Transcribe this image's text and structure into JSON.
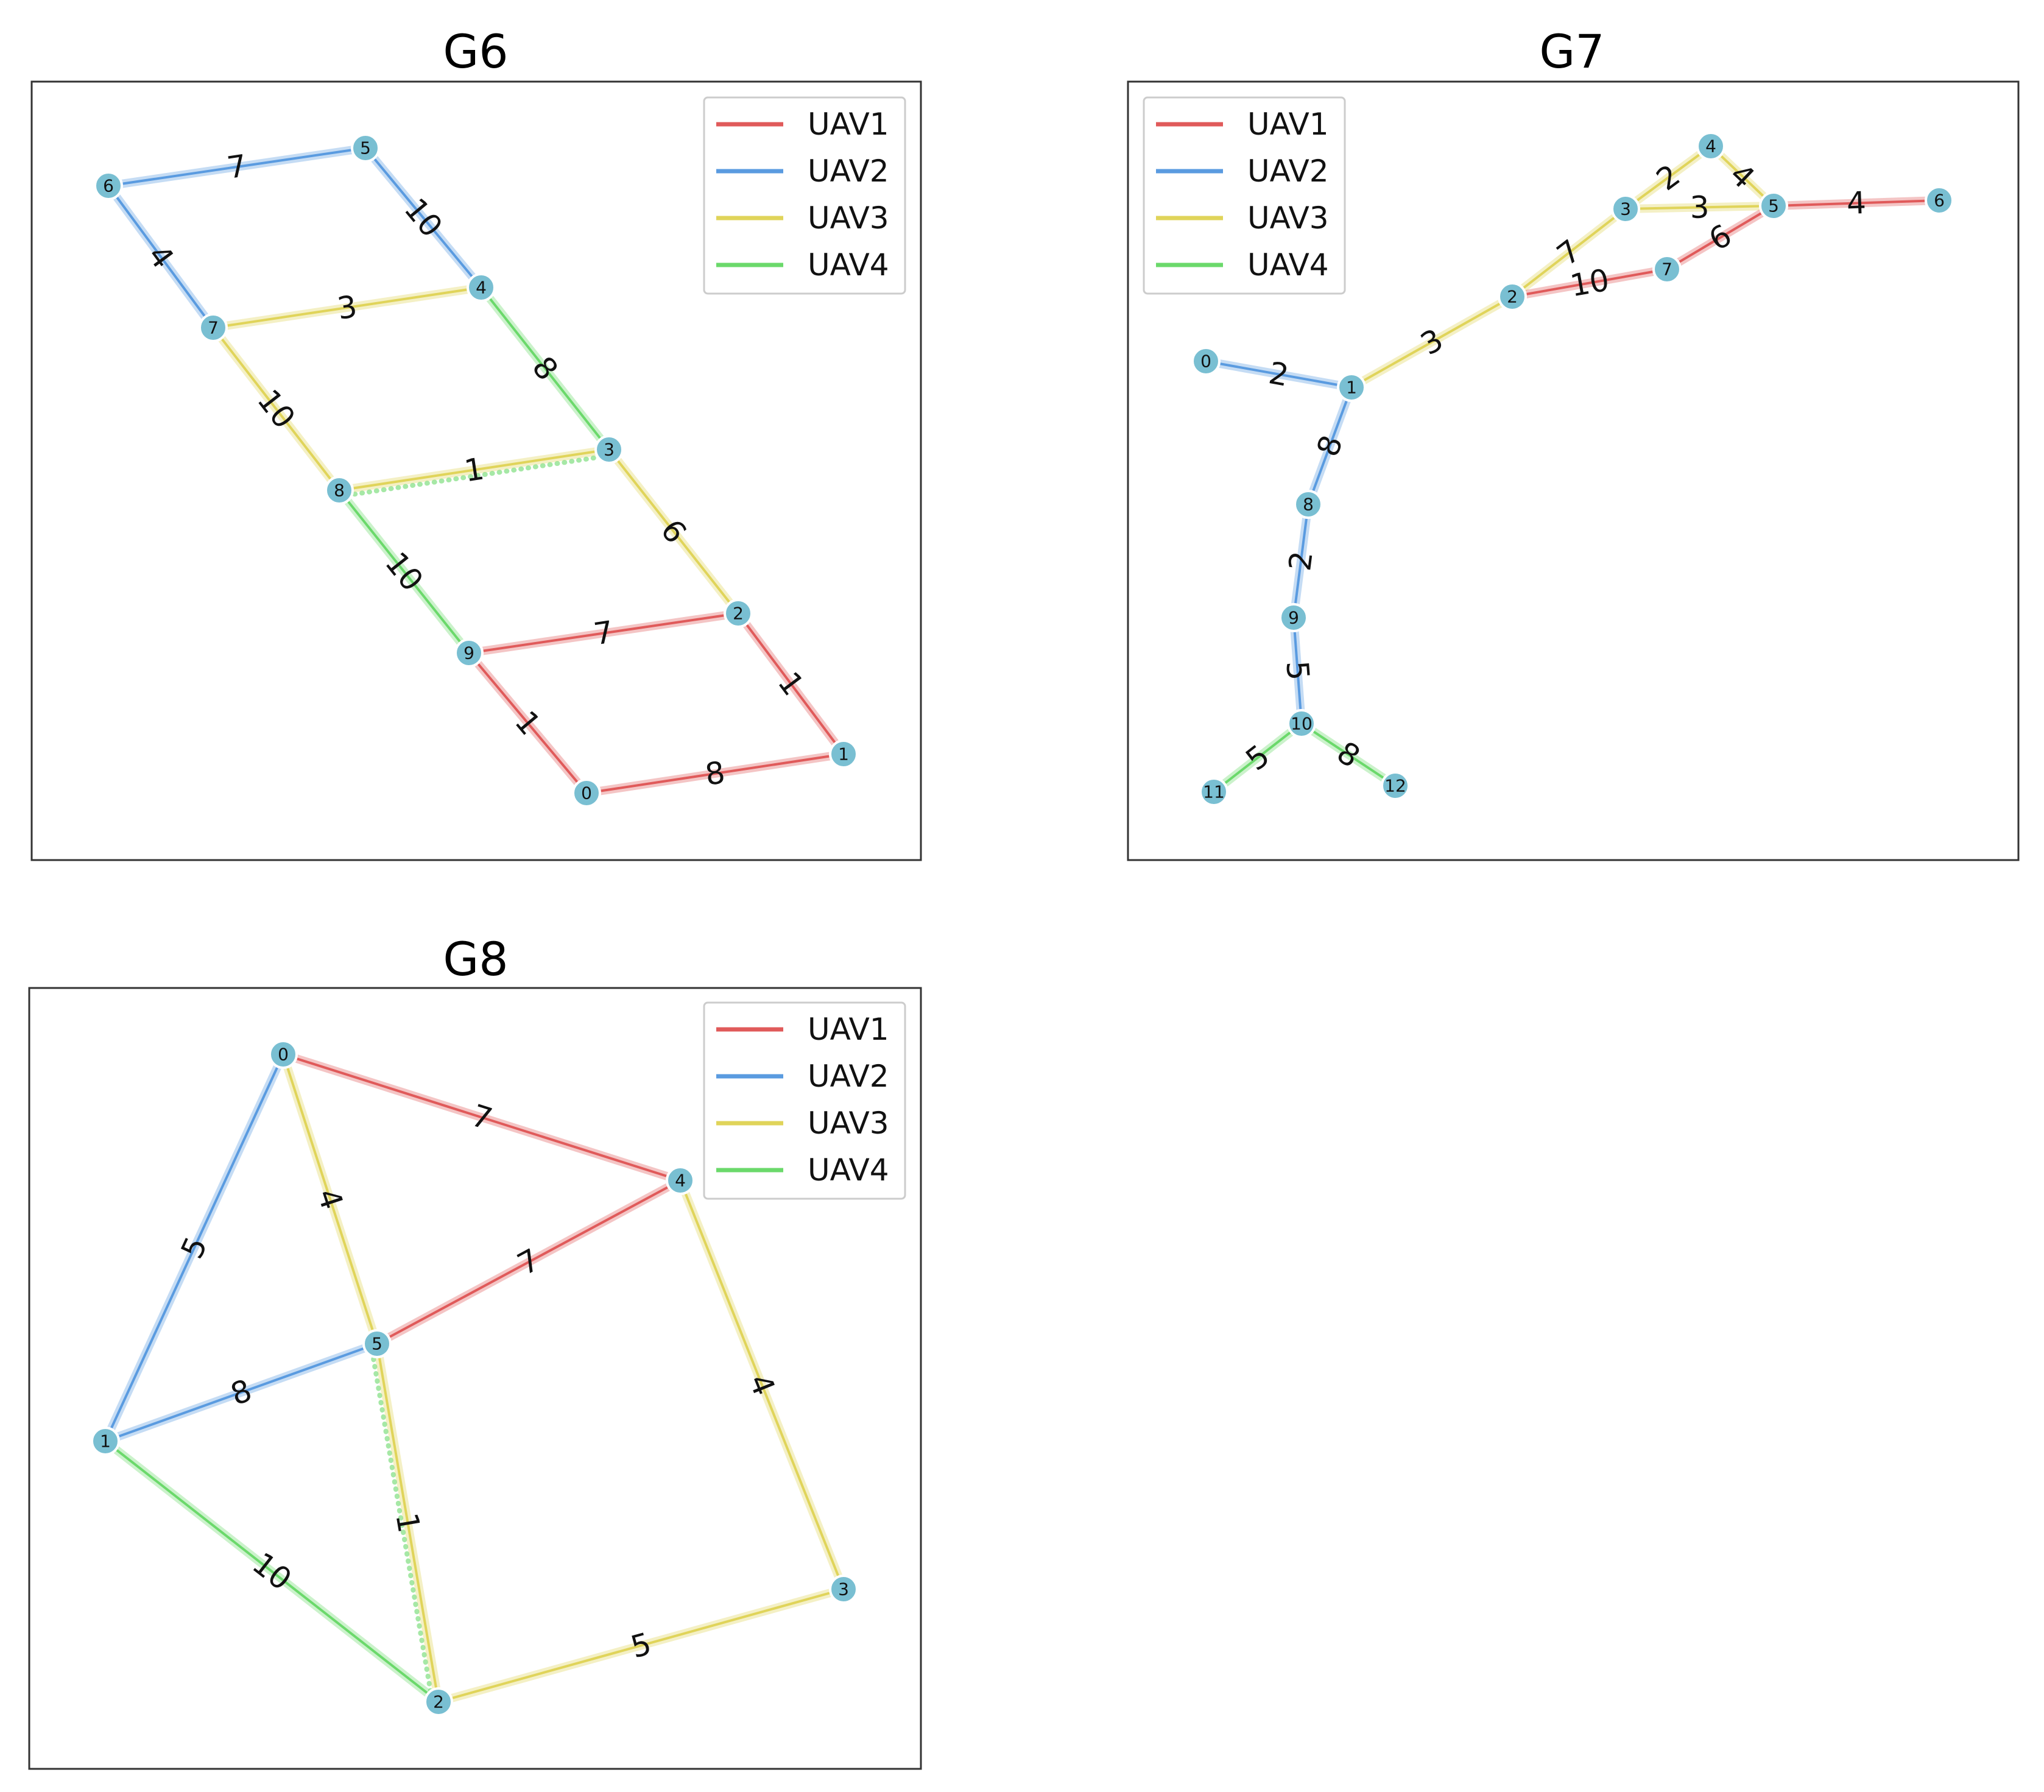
{
  "colors": {
    "UAV1": "#e05a5a",
    "UAV2": "#5a9be0",
    "UAV3": "#e0d45a",
    "UAV4": "#6bd96b",
    "node_fill": "#79bfd2"
  },
  "legend": [
    "UAV1",
    "UAV2",
    "UAV3",
    "UAV4"
  ],
  "graphs": [
    {
      "id": "g6",
      "title": "G6",
      "nodes": [
        {
          "id": "0"
        },
        {
          "id": "1"
        },
        {
          "id": "2"
        },
        {
          "id": "3"
        },
        {
          "id": "4"
        },
        {
          "id": "5"
        },
        {
          "id": "6"
        },
        {
          "id": "7"
        },
        {
          "id": "8"
        },
        {
          "id": "9"
        }
      ],
      "edges": [
        {
          "a": "6",
          "b": "5",
          "w": "7",
          "uav": "UAV2"
        },
        {
          "a": "5",
          "b": "4",
          "w": "10",
          "uav": "UAV2"
        },
        {
          "a": "6",
          "b": "7",
          "w": "4",
          "uav": "UAV2"
        },
        {
          "a": "7",
          "b": "4",
          "w": "3",
          "uav": "UAV3"
        },
        {
          "a": "4",
          "b": "3",
          "w": "8",
          "uav": "UAV4"
        },
        {
          "a": "7",
          "b": "8",
          "w": "10",
          "uav": "UAV3"
        },
        {
          "a": "8",
          "b": "3",
          "w": "1",
          "uav": "UAV3",
          "dotted": "UAV4"
        },
        {
          "a": "3",
          "b": "2",
          "w": "6",
          "uav": "UAV3"
        },
        {
          "a": "8",
          "b": "9",
          "w": "10",
          "uav": "UAV4"
        },
        {
          "a": "9",
          "b": "2",
          "w": "7",
          "uav": "UAV1"
        },
        {
          "a": "2",
          "b": "1",
          "w": "1",
          "uav": "UAV1"
        },
        {
          "a": "9",
          "b": "0",
          "w": "1",
          "uav": "UAV1"
        },
        {
          "a": "0",
          "b": "1",
          "w": "8",
          "uav": "UAV1"
        }
      ]
    },
    {
      "id": "g7",
      "title": "G7",
      "nodes": [
        {
          "id": "0"
        },
        {
          "id": "1"
        },
        {
          "id": "2"
        },
        {
          "id": "3"
        },
        {
          "id": "4"
        },
        {
          "id": "5"
        },
        {
          "id": "6"
        },
        {
          "id": "7"
        },
        {
          "id": "8"
        },
        {
          "id": "9"
        },
        {
          "id": "10"
        },
        {
          "id": "11"
        },
        {
          "id": "12"
        }
      ],
      "edges": [
        {
          "a": "0",
          "b": "1",
          "w": "2",
          "uav": "UAV2"
        },
        {
          "a": "1",
          "b": "2",
          "w": "3",
          "uav": "UAV3"
        },
        {
          "a": "2",
          "b": "3",
          "w": "7",
          "uav": "UAV3"
        },
        {
          "a": "3",
          "b": "4",
          "w": "2",
          "uav": "UAV3"
        },
        {
          "a": "4",
          "b": "5",
          "w": "4",
          "uav": "UAV3"
        },
        {
          "a": "3",
          "b": "5",
          "w": "3",
          "uav": "UAV3"
        },
        {
          "a": "5",
          "b": "6",
          "w": "4",
          "uav": "UAV1"
        },
        {
          "a": "2",
          "b": "7",
          "w": "10",
          "uav": "UAV1"
        },
        {
          "a": "7",
          "b": "5",
          "w": "6",
          "uav": "UAV1"
        },
        {
          "a": "1",
          "b": "8",
          "w": "8",
          "uav": "UAV2"
        },
        {
          "a": "8",
          "b": "9",
          "w": "2",
          "uav": "UAV2"
        },
        {
          "a": "9",
          "b": "10",
          "w": "5",
          "uav": "UAV2"
        },
        {
          "a": "10",
          "b": "11",
          "w": "5",
          "uav": "UAV4"
        },
        {
          "a": "10",
          "b": "12",
          "w": "8",
          "uav": "UAV4"
        }
      ]
    },
    {
      "id": "g8",
      "title": "G8",
      "nodes": [
        {
          "id": "0"
        },
        {
          "id": "1"
        },
        {
          "id": "2"
        },
        {
          "id": "3"
        },
        {
          "id": "4"
        },
        {
          "id": "5"
        }
      ],
      "edges": [
        {
          "a": "0",
          "b": "4",
          "w": "7",
          "uav": "UAV1"
        },
        {
          "a": "5",
          "b": "4",
          "w": "7",
          "uav": "UAV1"
        },
        {
          "a": "0",
          "b": "1",
          "w": "5",
          "uav": "UAV2"
        },
        {
          "a": "1",
          "b": "5",
          "w": "8",
          "uav": "UAV2"
        },
        {
          "a": "0",
          "b": "5",
          "w": "4",
          "uav": "UAV3"
        },
        {
          "a": "4",
          "b": "3",
          "w": "4",
          "uav": "UAV3"
        },
        {
          "a": "3",
          "b": "2",
          "w": "5",
          "uav": "UAV3"
        },
        {
          "a": "5",
          "b": "2",
          "w": "1",
          "uav": "UAV3",
          "dotted": "UAV4"
        },
        {
          "a": "1",
          "b": "2",
          "w": "10",
          "uav": "UAV4"
        }
      ]
    }
  ]
}
